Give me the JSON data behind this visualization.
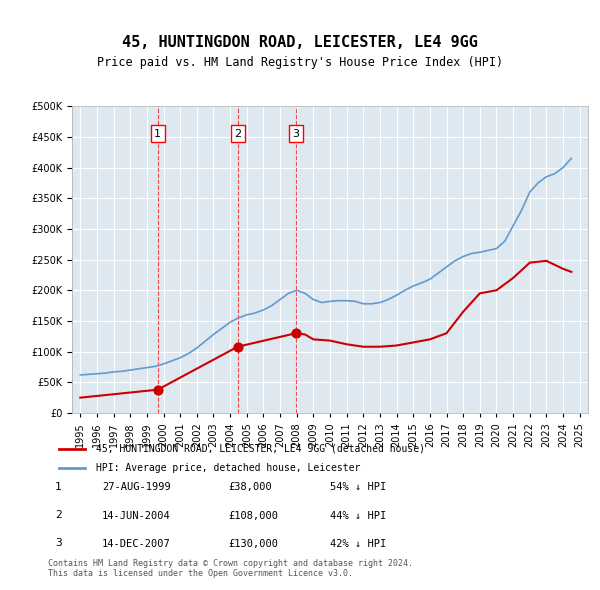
{
  "title": "45, HUNTINGDON ROAD, LEICESTER, LE4 9GG",
  "subtitle": "Price paid vs. HM Land Registry's House Price Index (HPI)",
  "background_color": "#dde8f0",
  "plot_bg_color": "#dde8f0",
  "sale_color": "#cc0000",
  "hpi_color": "#6699cc",
  "sale_label": "45, HUNTINGDON ROAD, LEICESTER, LE4 9GG (detached house)",
  "hpi_label": "HPI: Average price, detached house, Leicester",
  "footer": "Contains HM Land Registry data © Crown copyright and database right 2024.\nThis data is licensed under the Open Government Licence v3.0.",
  "annotations": [
    {
      "num": 1,
      "date": "27-AUG-1999",
      "price": 38000,
      "pct": "54% ↓ HPI",
      "year": 1999.65
    },
    {
      "num": 2,
      "date": "14-JUN-2004",
      "price": 108000,
      "pct": "44% ↓ HPI",
      "year": 2004.45
    },
    {
      "num": 3,
      "date": "14-DEC-2007",
      "price": 130000,
      "pct": "42% ↓ HPI",
      "year": 2007.95
    }
  ],
  "hpi_years": [
    1995,
    1995.5,
    1996,
    1996.5,
    1997,
    1997.5,
    1998,
    1998.5,
    1999,
    1999.5,
    2000,
    2000.5,
    2001,
    2001.5,
    2002,
    2002.5,
    2003,
    2003.5,
    2004,
    2004.5,
    2005,
    2005.5,
    2006,
    2006.5,
    2007,
    2007.5,
    2008,
    2008.5,
    2009,
    2009.5,
    2010,
    2010.5,
    2011,
    2011.5,
    2012,
    2012.5,
    2013,
    2013.5,
    2014,
    2014.5,
    2015,
    2015.5,
    2016,
    2016.5,
    2017,
    2017.5,
    2018,
    2018.5,
    2019,
    2019.5,
    2020,
    2020.5,
    2021,
    2021.5,
    2022,
    2022.5,
    2023,
    2023.5,
    2024,
    2024.5
  ],
  "hpi_values": [
    62000,
    63000,
    64000,
    65000,
    67000,
    68000,
    70000,
    72000,
    74000,
    76000,
    80000,
    85000,
    90000,
    97000,
    106000,
    117000,
    128000,
    138000,
    148000,
    155000,
    160000,
    163000,
    168000,
    175000,
    185000,
    195000,
    200000,
    195000,
    185000,
    180000,
    182000,
    183000,
    183000,
    182000,
    178000,
    178000,
    180000,
    185000,
    192000,
    200000,
    207000,
    212000,
    218000,
    228000,
    238000,
    248000,
    255000,
    260000,
    262000,
    265000,
    268000,
    280000,
    305000,
    330000,
    360000,
    375000,
    385000,
    390000,
    400000,
    415000
  ],
  "sale_years": [
    1999.65,
    2004.45,
    2007.95
  ],
  "sale_prices": [
    38000,
    108000,
    130000
  ],
  "sale_line_years": [
    1995,
    1999.65,
    2004.45,
    2007.95,
    2008.5,
    2009,
    2010,
    2011,
    2012,
    2013,
    2014,
    2015,
    2016,
    2017,
    2018,
    2019,
    2020,
    2021,
    2022,
    2023,
    2024,
    2024.5
  ],
  "sale_line_values": [
    25000,
    38000,
    108000,
    130000,
    128000,
    120000,
    118000,
    112000,
    108000,
    108000,
    110000,
    115000,
    120000,
    130000,
    165000,
    195000,
    200000,
    220000,
    245000,
    248000,
    235000,
    230000
  ],
  "ylim": [
    0,
    500000
  ],
  "yticks": [
    0,
    50000,
    100000,
    150000,
    200000,
    250000,
    300000,
    350000,
    400000,
    450000,
    500000
  ],
  "xlim": [
    1994.5,
    2025.5
  ],
  "xticks": [
    1995,
    1996,
    1997,
    1998,
    1999,
    2000,
    2001,
    2002,
    2003,
    2004,
    2005,
    2006,
    2007,
    2008,
    2009,
    2010,
    2011,
    2012,
    2013,
    2014,
    2015,
    2016,
    2017,
    2018,
    2019,
    2020,
    2021,
    2022,
    2023,
    2024,
    2025
  ]
}
